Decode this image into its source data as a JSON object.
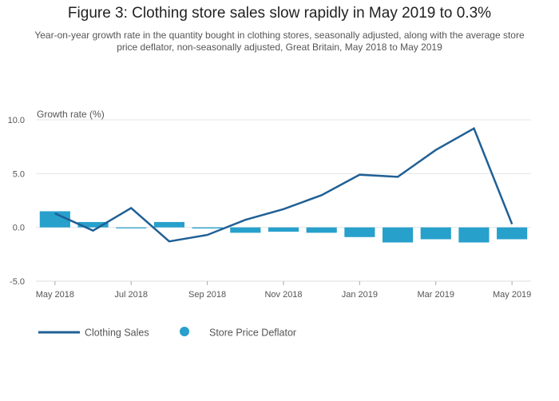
{
  "chart_data": {
    "type": "bar+line",
    "title": "Figure 3: Clothing store sales slow rapidly in May 2019 to 0.3%",
    "subtitle": "Year-on-year growth rate in the quantity bought in clothing stores, seasonally adjusted, along with the average store price deflator, non-seasonally adjusted, Great Britain, May 2018 to May 2019",
    "ylabel": "Growth rate (%)",
    "ylim": [
      -5,
      10
    ],
    "yticks": [
      {
        "value": 10,
        "label": "10.0"
      },
      {
        "value": 5,
        "label": "5.0"
      },
      {
        "value": 0,
        "label": "0.0"
      },
      {
        "value": -5,
        "label": "-5.0"
      }
    ],
    "x": [
      "May 2018",
      "Jun 2018",
      "Jul 2018",
      "Aug 2018",
      "Sep 2018",
      "Oct 2018",
      "Nov 2018",
      "Dec 2018",
      "Jan 2019",
      "Feb 2019",
      "Mar 2019",
      "Apr 2019",
      "May 2019"
    ],
    "xtick_labels": [
      "May 2018",
      "",
      "Jul 2018",
      "",
      "Sep 2018",
      "",
      "Nov 2018",
      "",
      "Jan 2019",
      "",
      "Mar 2019",
      "",
      "May 2019"
    ],
    "series": [
      {
        "name": "Clothing Sales",
        "type": "line",
        "color": "#206095",
        "values": [
          1.3,
          -0.3,
          1.8,
          -1.3,
          -0.7,
          0.7,
          1.7,
          3.0,
          4.9,
          4.7,
          7.2,
          9.2,
          0.3
        ]
      },
      {
        "name": "Store Price Deflator",
        "type": "bar",
        "color": "#27a0cc",
        "values": [
          1.5,
          0.5,
          0.0,
          0.5,
          -0.1,
          -0.5,
          -0.4,
          -0.5,
          -0.9,
          -1.4,
          -1.1,
          -1.4,
          -1.1
        ]
      }
    ],
    "grid": true,
    "legend": "bottom-left"
  }
}
